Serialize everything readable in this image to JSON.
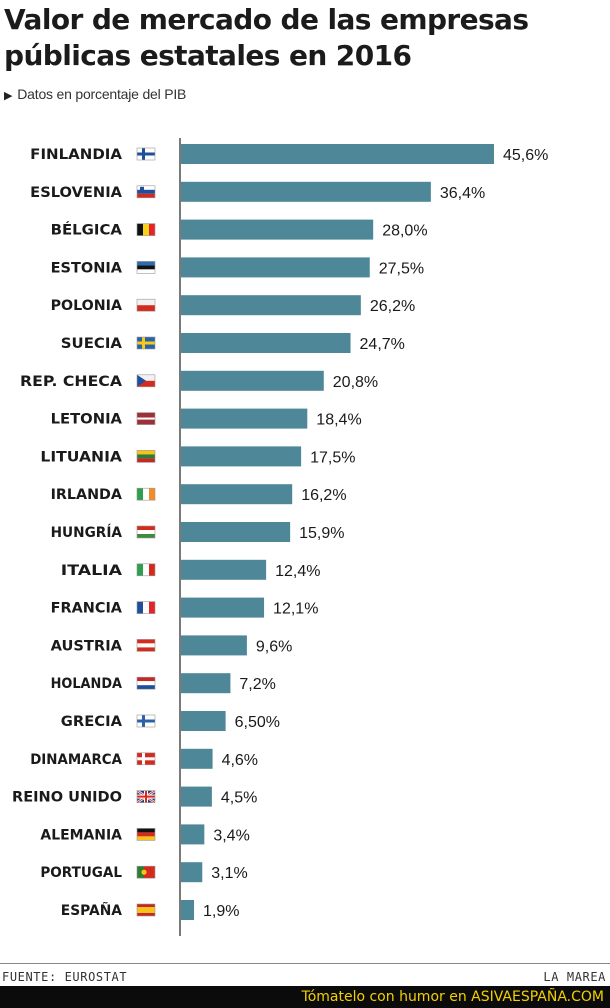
{
  "title": "Valor de mercado de las empresas públicas estatales en 2016",
  "subtitle": "Datos en porcentaje del PIB",
  "source": "FUENTE: EUROSTAT",
  "publisher": "LA MAREA",
  "watermark": "Tómatelo con humor en ASIVAESPAÑA.COM",
  "colors": {
    "bar": "#4e8798",
    "text": "#1a1a1a",
    "axis": "#222222"
  },
  "chart_data": {
    "type": "bar",
    "orientation": "horizontal",
    "title": "Valor de mercado de las empresas públicas estatales en 2016",
    "subtitle": "Datos en porcentaje del PIB",
    "categories": [
      "FINLANDIA",
      "ESLOVENIA",
      "BÉLGICA",
      "ESTONIA",
      "POLONIA",
      "SUECIA",
      "REP. CHECA",
      "LETONIA",
      "LITUANIA",
      "IRLANDA",
      "HUNGRÍA",
      "ITALIA",
      "FRANCIA",
      "AUSTRIA",
      "HOLANDA",
      "GRECIA",
      "DINAMARCA",
      "REINO UNIDO",
      "ALEMANIA",
      "PORTUGAL",
      "ESPAÑA"
    ],
    "values": [
      45.6,
      36.4,
      28.0,
      27.5,
      26.2,
      24.7,
      20.8,
      18.4,
      17.5,
      16.2,
      15.9,
      12.4,
      12.1,
      9.6,
      7.2,
      6.5,
      4.6,
      4.5,
      3.4,
      3.1,
      1.9
    ],
    "labels": [
      "45,6%",
      "36,4%",
      "28,0%",
      "27,5%",
      "26,2%",
      "24,7%",
      "20,8%",
      "18,4%",
      "17,5%",
      "16,2%",
      "15,9%",
      "12,4%",
      "12,1%",
      "9,6%",
      "7,2%",
      "6,50%",
      "4,6%",
      "4,5%",
      "3,4%",
      "3,1%",
      "1,9%"
    ],
    "flags": [
      "finland-flag-icon",
      "slovenia-flag-icon",
      "belgium-flag-icon",
      "estonia-flag-icon",
      "poland-flag-icon",
      "sweden-flag-icon",
      "czech-flag-icon",
      "latvia-flag-icon",
      "lithuania-flag-icon",
      "ireland-flag-icon",
      "hungary-flag-icon",
      "italy-flag-icon",
      "france-flag-icon",
      "austria-flag-icon",
      "netherlands-flag-icon",
      "greece-flag-icon",
      "denmark-flag-icon",
      "uk-flag-icon",
      "germany-flag-icon",
      "portugal-flag-icon",
      "spain-flag-icon"
    ],
    "xlim": [
      0,
      46
    ],
    "grid": false,
    "legend": "none"
  }
}
